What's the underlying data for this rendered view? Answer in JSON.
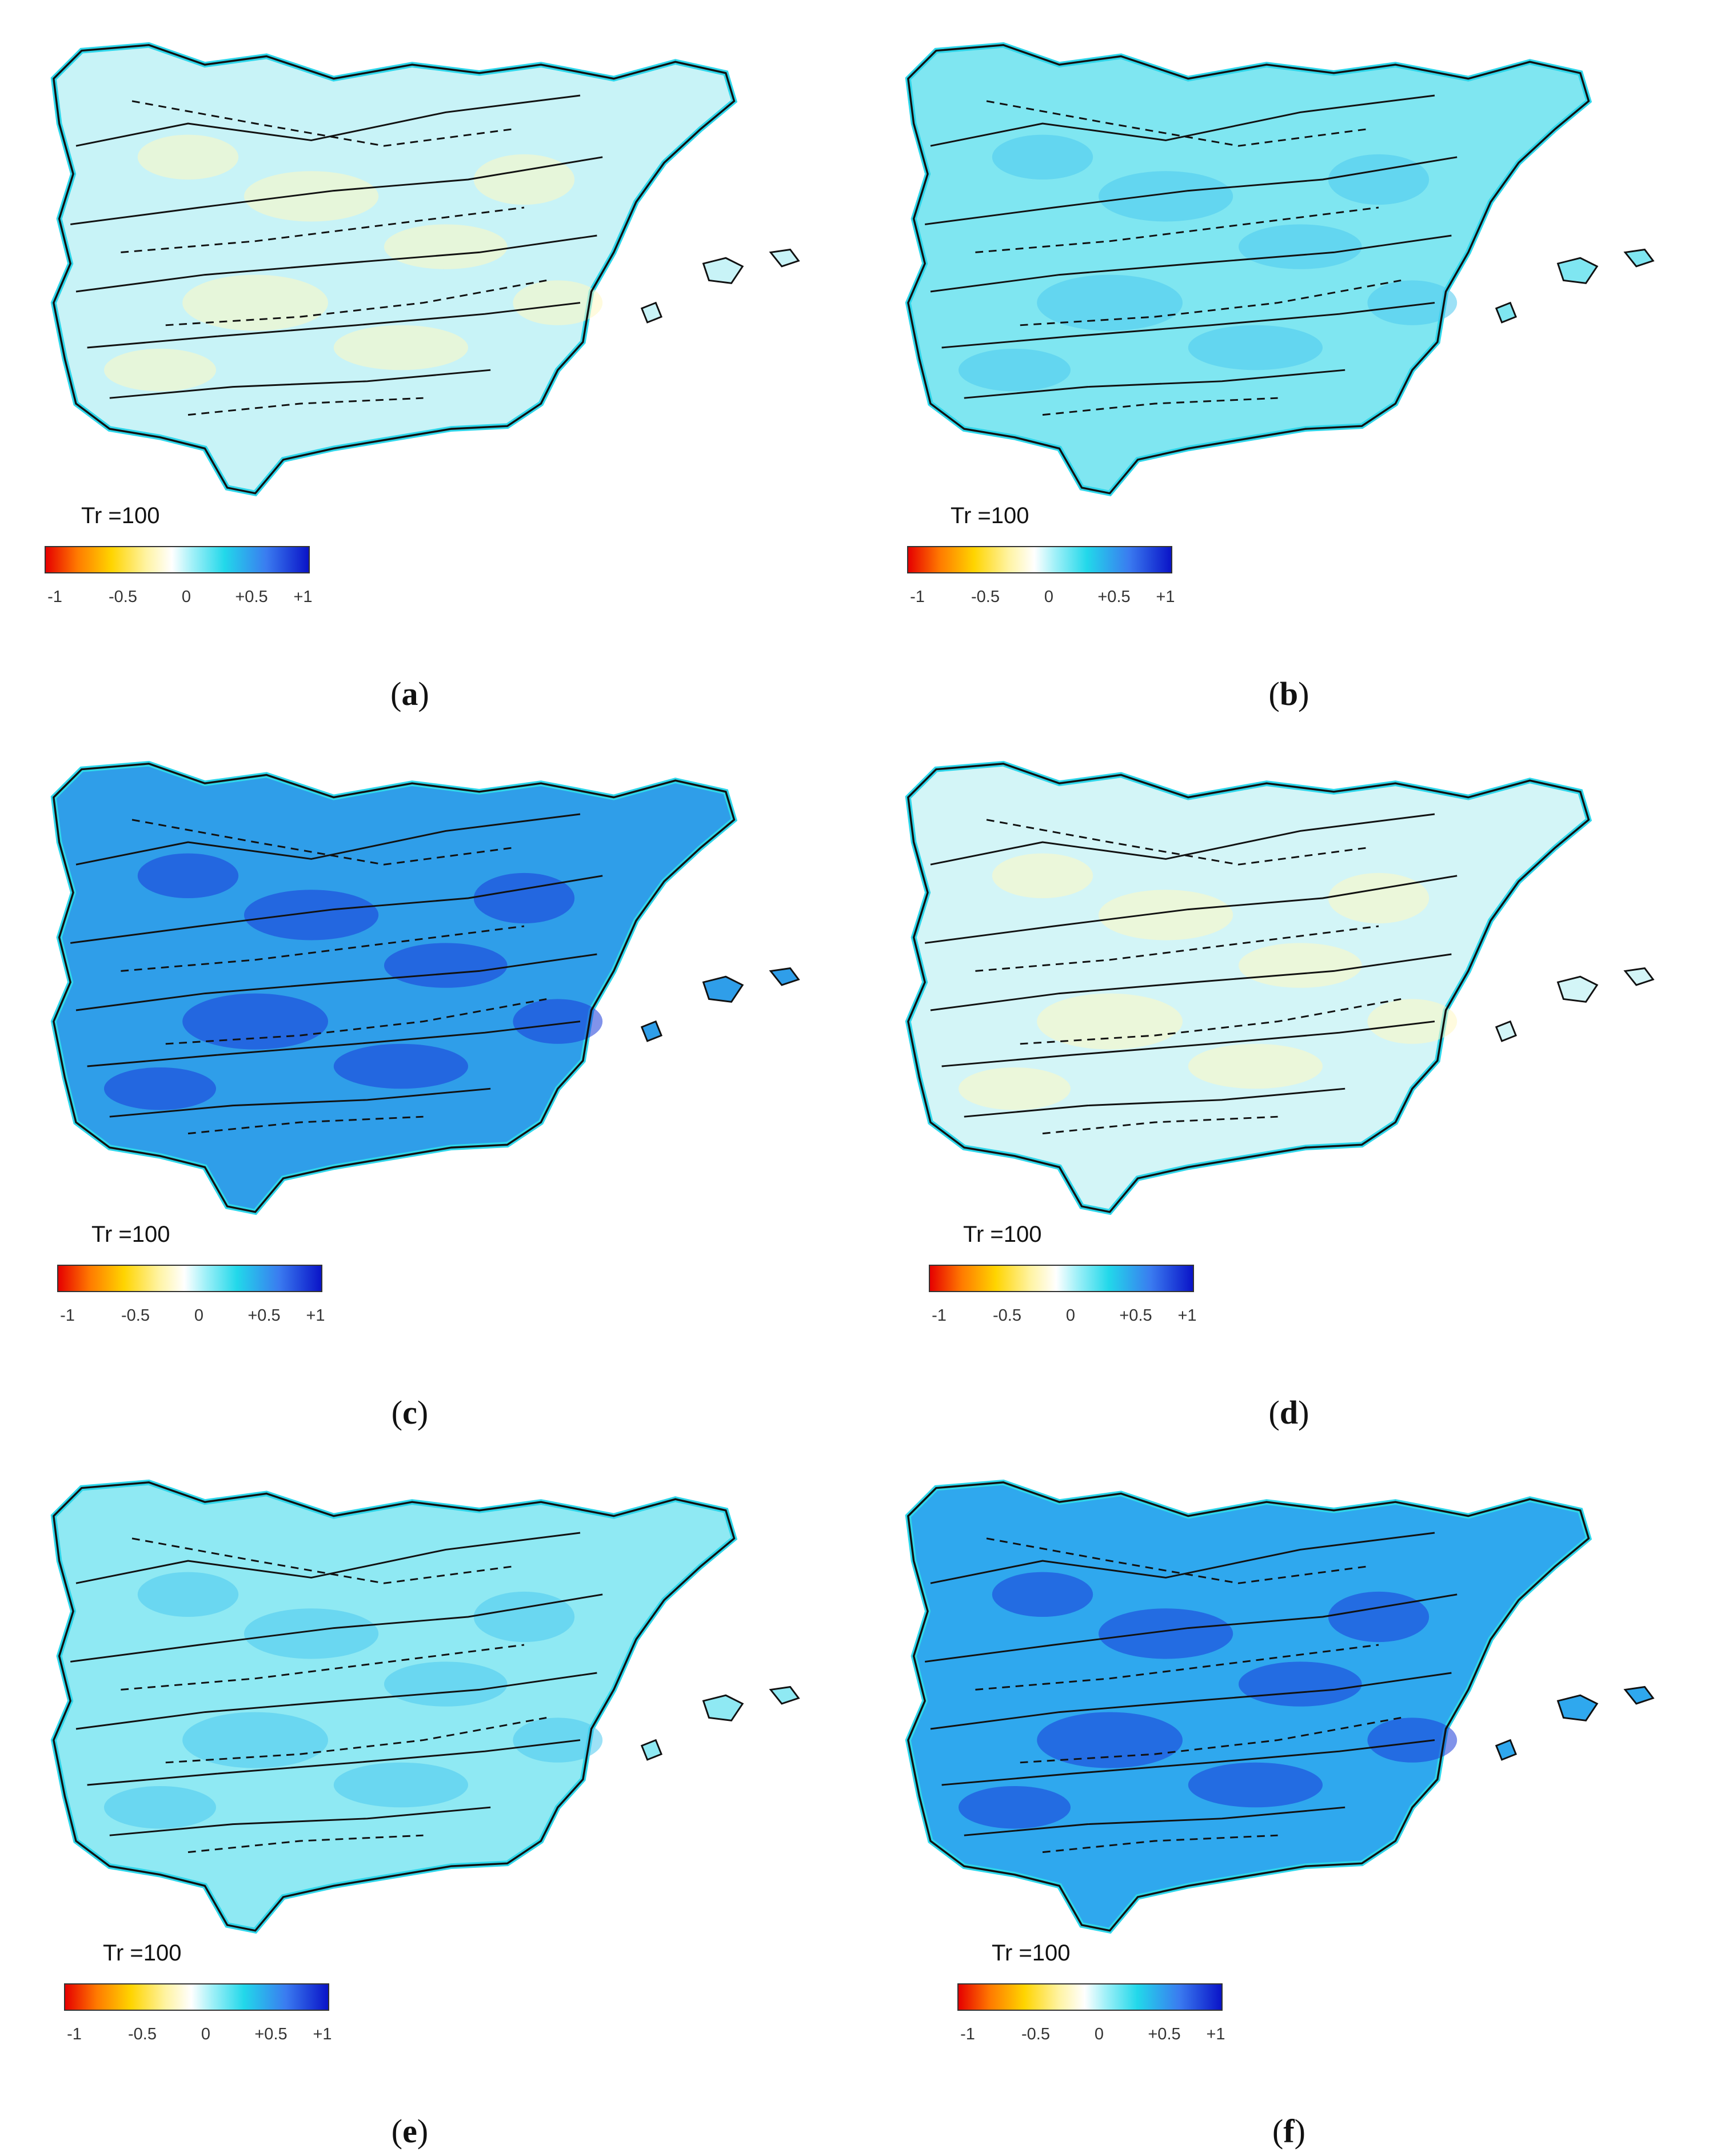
{
  "legend": {
    "title": "Tr =100",
    "ticks": [
      "-1",
      "-0.5",
      "0",
      "+0.5",
      "+1"
    ]
  },
  "panels": [
    {
      "id": "a",
      "caption_open": "(",
      "caption_letter": "a",
      "caption_close": ")",
      "level": "mixed-light",
      "fill": "#c8f3f7"
    },
    {
      "id": "b",
      "caption_open": "(",
      "caption_letter": "b",
      "caption_close": ")",
      "level": "light-cyan",
      "fill": "#7fe6f1"
    },
    {
      "id": "c",
      "caption_open": "(",
      "caption_letter": "c",
      "caption_close": ")",
      "level": "strong-blue",
      "fill": "#2f9ee9"
    },
    {
      "id": "d",
      "caption_open": "(",
      "caption_letter": "d",
      "caption_close": ")",
      "level": "mixed-light",
      "fill": "#d3f5f7"
    },
    {
      "id": "e",
      "caption_open": "(",
      "caption_letter": "e",
      "caption_close": ")",
      "level": "light-cyan",
      "fill": "#8fe9f3"
    },
    {
      "id": "f",
      "caption_open": "(",
      "caption_letter": "f",
      "caption_close": ")",
      "level": "strong-blue",
      "fill": "#2fa8ee"
    }
  ],
  "colorscale": [
    "#e60000",
    "#ff7a00",
    "#ffd400",
    "#ffffff",
    "#22d8ea",
    "#0a14c8"
  ]
}
